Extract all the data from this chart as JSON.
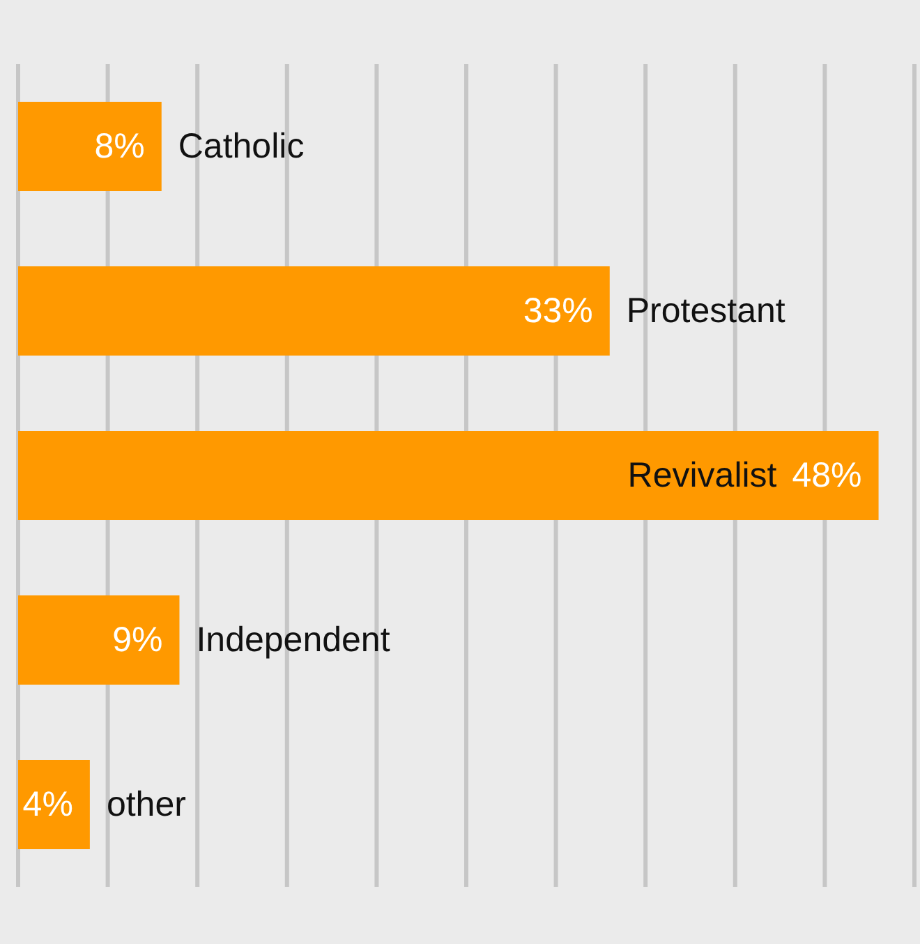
{
  "chart_data": {
    "type": "bar",
    "orientation": "horizontal",
    "categories": [
      "Catholic",
      "Protestant",
      "Revivalist",
      "Independent",
      "other"
    ],
    "values": [
      8,
      33,
      48,
      9,
      4
    ],
    "value_labels": [
      "8%",
      "33%",
      "48%",
      "9%",
      "4%"
    ],
    "color": "#ff9900",
    "xlim": [
      0,
      50
    ],
    "xticks": [
      {
        "value": 0,
        "label": null
      },
      {
        "value": 5,
        "label": null
      },
      {
        "value": 10,
        "label": null
      },
      {
        "value": 15,
        "label": null
      },
      {
        "value": 20,
        "label": null
      },
      {
        "value": 25,
        "label": null
      },
      {
        "value": 30,
        "label": null
      },
      {
        "value": 35,
        "label": null
      },
      {
        "value": 40,
        "label": null
      },
      {
        "value": 45,
        "label": null
      },
      {
        "value": 50,
        "label": null
      }
    ],
    "grid": "x",
    "tick_labels": false
  }
}
